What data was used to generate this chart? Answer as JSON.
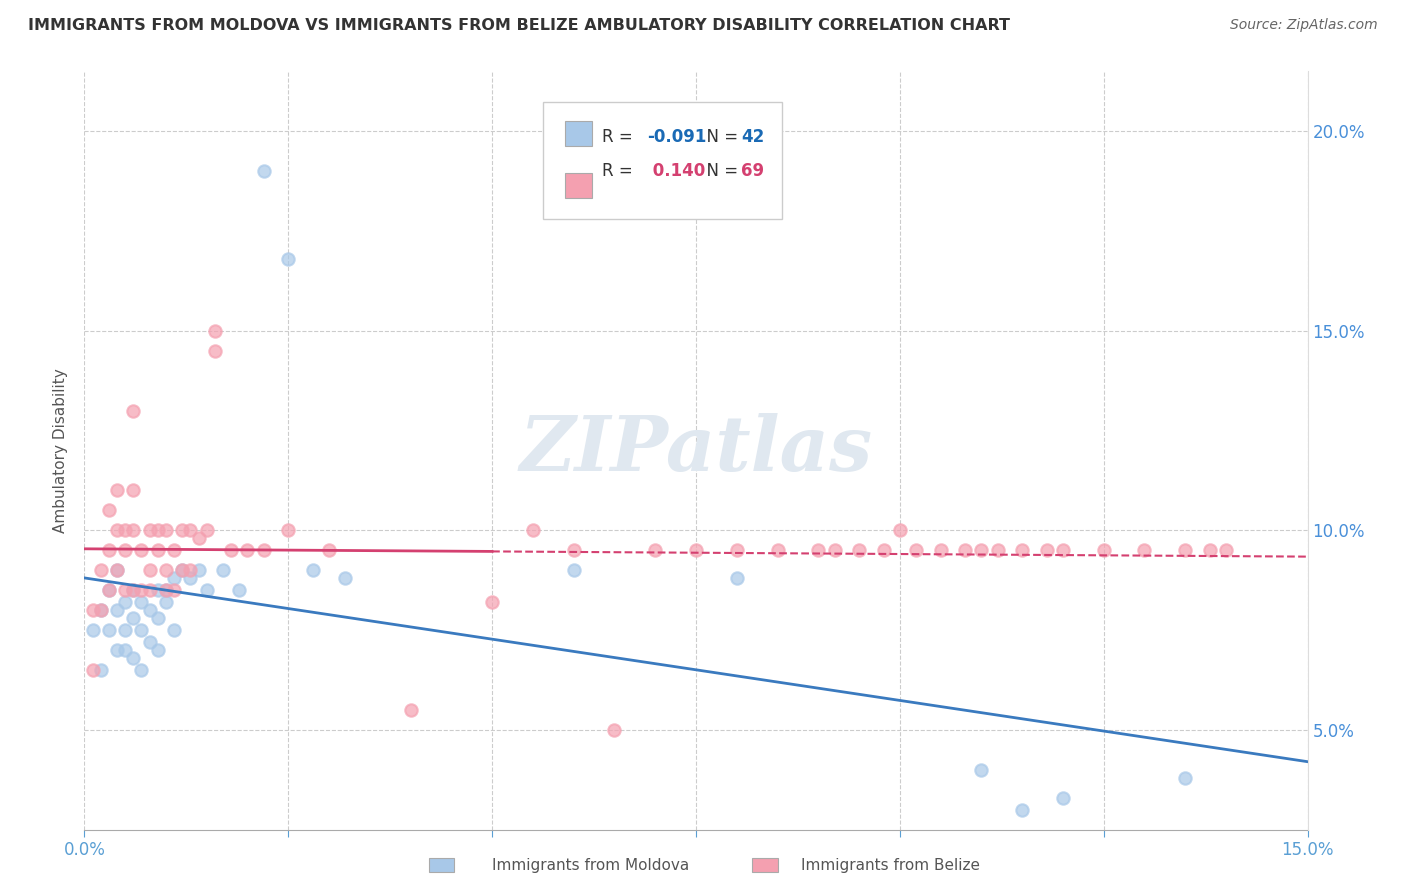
{
  "title": "IMMIGRANTS FROM MOLDOVA VS IMMIGRANTS FROM BELIZE AMBULATORY DISABILITY CORRELATION CHART",
  "source": "Source: ZipAtlas.com",
  "ylabel": "Ambulatory Disability",
  "xlim": [
    0.0,
    0.15
  ],
  "ylim": [
    0.025,
    0.215
  ],
  "xticks": [
    0.0,
    0.025,
    0.05,
    0.075,
    0.1,
    0.125,
    0.15
  ],
  "yticks": [
    0.05,
    0.1,
    0.15,
    0.2
  ],
  "ytick_labels": [
    "5.0%",
    "10.0%",
    "15.0%",
    "20.0%"
  ],
  "xtick_labels": [
    "0.0%",
    "",
    "",
    "",
    "",
    "",
    "15.0%"
  ],
  "moldova_R": -0.091,
  "moldova_N": 42,
  "belize_R": 0.14,
  "belize_N": 69,
  "moldova_color": "#a8c8e8",
  "belize_color": "#f4a0b0",
  "moldova_line_color": "#3a7abf",
  "belize_line_color": "#d44070",
  "watermark": "ZIPatlas",
  "legend_R_color_moldova": "#1a6ab5",
  "legend_R_color_belize": "#d44070",
  "moldova_x": [
    0.001,
    0.002,
    0.002,
    0.003,
    0.003,
    0.004,
    0.004,
    0.004,
    0.005,
    0.005,
    0.005,
    0.006,
    0.006,
    0.006,
    0.007,
    0.007,
    0.007,
    0.008,
    0.008,
    0.009,
    0.009,
    0.009,
    0.01,
    0.01,
    0.011,
    0.011,
    0.012,
    0.013,
    0.014,
    0.015,
    0.017,
    0.019,
    0.022,
    0.025,
    0.028,
    0.032,
    0.06,
    0.08,
    0.11,
    0.115,
    0.12,
    0.135
  ],
  "moldova_y": [
    0.075,
    0.065,
    0.08,
    0.075,
    0.085,
    0.07,
    0.08,
    0.09,
    0.075,
    0.082,
    0.07,
    0.085,
    0.078,
    0.068,
    0.082,
    0.075,
    0.065,
    0.08,
    0.072,
    0.085,
    0.078,
    0.07,
    0.085,
    0.082,
    0.088,
    0.075,
    0.09,
    0.088,
    0.09,
    0.085,
    0.09,
    0.085,
    0.19,
    0.168,
    0.09,
    0.088,
    0.09,
    0.088,
    0.04,
    0.03,
    0.033,
    0.038
  ],
  "belize_x": [
    0.001,
    0.001,
    0.002,
    0.002,
    0.003,
    0.003,
    0.003,
    0.004,
    0.004,
    0.004,
    0.005,
    0.005,
    0.005,
    0.006,
    0.006,
    0.006,
    0.006,
    0.007,
    0.007,
    0.008,
    0.008,
    0.008,
    0.009,
    0.009,
    0.01,
    0.01,
    0.01,
    0.011,
    0.011,
    0.012,
    0.012,
    0.013,
    0.013,
    0.014,
    0.015,
    0.016,
    0.016,
    0.018,
    0.02,
    0.022,
    0.025,
    0.03,
    0.04,
    0.05,
    0.055,
    0.06,
    0.065,
    0.07,
    0.075,
    0.08,
    0.085,
    0.09,
    0.092,
    0.095,
    0.098,
    0.1,
    0.102,
    0.105,
    0.108,
    0.11,
    0.112,
    0.115,
    0.118,
    0.12,
    0.125,
    0.13,
    0.135,
    0.138,
    0.14
  ],
  "belize_y": [
    0.065,
    0.08,
    0.09,
    0.08,
    0.095,
    0.105,
    0.085,
    0.1,
    0.11,
    0.09,
    0.095,
    0.085,
    0.1,
    0.11,
    0.13,
    0.085,
    0.1,
    0.095,
    0.085,
    0.1,
    0.09,
    0.085,
    0.095,
    0.1,
    0.09,
    0.1,
    0.085,
    0.095,
    0.085,
    0.1,
    0.09,
    0.1,
    0.09,
    0.098,
    0.1,
    0.145,
    0.15,
    0.095,
    0.095,
    0.095,
    0.1,
    0.095,
    0.055,
    0.082,
    0.1,
    0.095,
    0.05,
    0.095,
    0.095,
    0.095,
    0.095,
    0.095,
    0.095,
    0.095,
    0.095,
    0.1,
    0.095,
    0.095,
    0.095,
    0.095,
    0.095,
    0.095,
    0.095,
    0.095,
    0.095,
    0.095,
    0.095,
    0.095,
    0.095
  ]
}
